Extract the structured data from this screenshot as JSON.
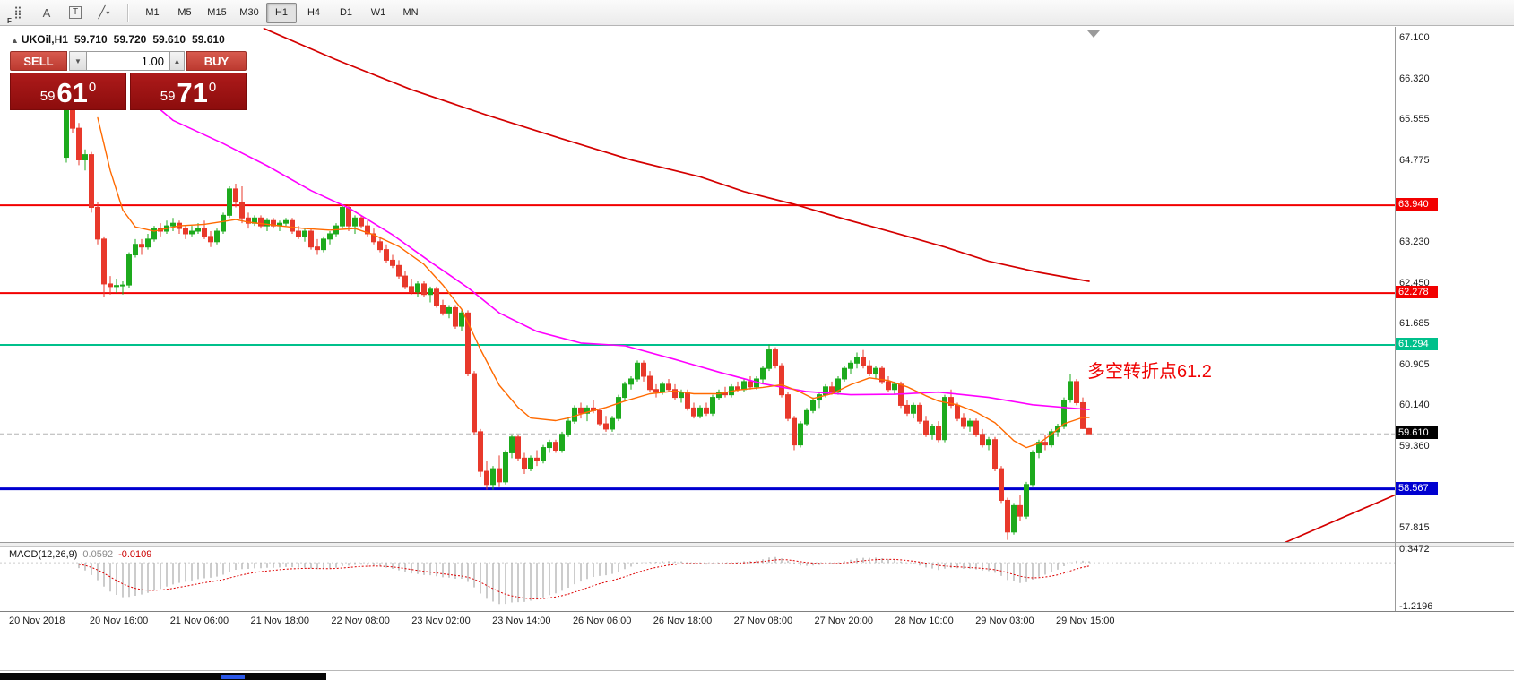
{
  "toolbar": {
    "icons": [
      {
        "name": "crosshair-grid-icon",
        "glyph": "⣿",
        "badge": "F"
      },
      {
        "name": "text-label-icon",
        "glyph": "A"
      },
      {
        "name": "text-frame-icon",
        "glyph": "T",
        "framed": true
      },
      {
        "name": "draw-shapes-icon",
        "glyph": "╱",
        "caret": "▾"
      }
    ],
    "timeframes": [
      "M1",
      "M5",
      "M15",
      "M30",
      "H1",
      "H4",
      "D1",
      "W1",
      "MN"
    ],
    "active_timeframe": "H1"
  },
  "quote": {
    "symbol_marker": "▲",
    "symbol": "UKOil,H1",
    "open": "59.710",
    "high": "59.720",
    "low": "59.610",
    "close": "59.610"
  },
  "trade_panel": {
    "sell_label": "SELL",
    "buy_label": "BUY",
    "volume": "1.00",
    "vol_down_glyph": "▼",
    "vol_up_glyph": "▲",
    "bid_small": "59",
    "bid_big": "61",
    "bid_sup": "0",
    "ask_small": "59",
    "ask_big": "71",
    "ask_sup": "0"
  },
  "annotation": {
    "text": "多空转折点61.2",
    "color": "#ef0000"
  },
  "macd_panel": {
    "label": "MACD(12,26,9)",
    "value_main": "0.0592",
    "value_signal": "-0.0109",
    "axis_max": "0.3472",
    "axis_min": "-1.2196"
  },
  "price_axis": {
    "ticks": [
      "67.100",
      "66.320",
      "65.555",
      "64.775",
      "63.230",
      "62.450",
      "61.685",
      "60.905",
      "60.140",
      "59.360",
      "57.815"
    ],
    "special": [
      {
        "text": "63.940",
        "price": 63.94,
        "bg": "#f20000",
        "fg": "#ffffff"
      },
      {
        "text": "62.278",
        "price": 62.278,
        "bg": "#f20000",
        "fg": "#ffffff"
      },
      {
        "text": "61.294",
        "price": 61.294,
        "bg": "#00c08b",
        "fg": "#ffffff"
      },
      {
        "text": "59.610",
        "price": 59.61,
        "bg": "#000000",
        "fg": "#ffffff"
      },
      {
        "text": "58.567",
        "price": 58.567,
        "bg": "#0000d0",
        "fg": "#ffffff"
      }
    ]
  },
  "time_axis": {
    "labels": [
      "20 Nov 2018",
      "20 Nov 16:00",
      "21 Nov 06:00",
      "21 Nov 18:00",
      "22 Nov 08:00",
      "23 Nov 02:00",
      "23 Nov 14:00",
      "26 Nov 06:00",
      "26 Nov 18:00",
      "27 Nov 08:00",
      "27 Nov 20:00",
      "28 Nov 10:00",
      "29 Nov 03:00",
      "29 Nov 15:00"
    ]
  },
  "chart_data": {
    "type": "candlestick",
    "symbol": "UKOil",
    "timeframe": "H1",
    "ylim": [
      57.5,
      67.3
    ],
    "colors": {
      "up": "#1daa1d",
      "down": "#e8392b",
      "ma_fast": "#ff6a00",
      "ma_mid": "#ff00ff",
      "ma_slow": "#d40000"
    },
    "candles": [
      [
        64.85,
        66.2,
        64.75,
        66.1
      ],
      [
        66.1,
        66.15,
        65.3,
        65.4
      ],
      [
        65.4,
        65.5,
        64.7,
        64.8
      ],
      [
        64.8,
        65.0,
        64.6,
        64.9
      ],
      [
        64.9,
        64.95,
        63.8,
        63.9
      ],
      [
        63.9,
        64.0,
        63.2,
        63.3
      ],
      [
        63.3,
        63.35,
        62.2,
        62.45
      ],
      [
        62.45,
        62.6,
        62.25,
        62.4
      ],
      [
        62.4,
        62.55,
        62.28,
        62.42
      ],
      [
        62.42,
        62.5,
        62.25,
        62.43
      ],
      [
        62.43,
        63.05,
        62.38,
        63.0
      ],
      [
        63.0,
        63.3,
        62.95,
        63.2
      ],
      [
        63.2,
        63.3,
        63.0,
        63.15
      ],
      [
        63.15,
        63.4,
        63.1,
        63.3
      ],
      [
        63.3,
        63.55,
        63.25,
        63.5
      ],
      [
        63.5,
        63.6,
        63.35,
        63.45
      ],
      [
        63.45,
        63.65,
        63.4,
        63.55
      ],
      [
        63.55,
        63.7,
        63.45,
        63.6
      ],
      [
        63.6,
        63.65,
        63.4,
        63.5
      ],
      [
        63.5,
        63.55,
        63.3,
        63.4
      ],
      [
        63.4,
        63.55,
        63.35,
        63.45
      ],
      [
        63.45,
        63.6,
        63.4,
        63.5
      ],
      [
        63.5,
        63.65,
        63.3,
        63.35
      ],
      [
        63.35,
        63.45,
        63.15,
        63.25
      ],
      [
        63.25,
        63.5,
        63.2,
        63.45
      ],
      [
        63.45,
        63.8,
        63.4,
        63.75
      ],
      [
        63.75,
        64.3,
        63.7,
        64.25
      ],
      [
        64.25,
        64.35,
        63.9,
        64.0
      ],
      [
        64.0,
        64.3,
        63.6,
        63.7
      ],
      [
        63.7,
        63.8,
        63.5,
        63.6
      ],
      [
        63.6,
        63.75,
        63.55,
        63.7
      ],
      [
        63.7,
        63.75,
        63.5,
        63.55
      ],
      [
        63.55,
        63.7,
        63.45,
        63.65
      ],
      [
        63.65,
        63.7,
        63.5,
        63.55
      ],
      [
        63.55,
        63.65,
        63.45,
        63.6
      ],
      [
        63.6,
        63.7,
        63.55,
        63.65
      ],
      [
        63.65,
        63.7,
        63.4,
        63.45
      ],
      [
        63.45,
        63.55,
        63.3,
        63.35
      ],
      [
        63.35,
        63.5,
        63.25,
        63.45
      ],
      [
        63.45,
        63.5,
        63.1,
        63.15
      ],
      [
        63.15,
        63.3,
        63.0,
        63.1
      ],
      [
        63.1,
        63.35,
        63.05,
        63.3
      ],
      [
        63.3,
        63.45,
        63.2,
        63.4
      ],
      [
        63.4,
        63.6,
        63.35,
        63.55
      ],
      [
        63.55,
        63.95,
        63.5,
        63.9
      ],
      [
        63.9,
        63.95,
        63.45,
        63.55
      ],
      [
        63.55,
        63.75,
        63.4,
        63.7
      ],
      [
        63.7,
        63.75,
        63.5,
        63.55
      ],
      [
        63.55,
        63.65,
        63.35,
        63.4
      ],
      [
        63.4,
        63.5,
        63.2,
        63.25
      ],
      [
        63.25,
        63.35,
        63.05,
        63.1
      ],
      [
        63.1,
        63.2,
        62.85,
        62.9
      ],
      [
        62.9,
        63.0,
        62.75,
        62.8
      ],
      [
        62.8,
        62.9,
        62.55,
        62.6
      ],
      [
        62.6,
        62.7,
        62.35,
        62.4
      ],
      [
        62.4,
        62.55,
        62.25,
        62.3
      ],
      [
        62.3,
        62.5,
        62.2,
        62.45
      ],
      [
        62.45,
        62.5,
        62.2,
        62.25
      ],
      [
        62.25,
        62.4,
        62.1,
        62.35
      ],
      [
        62.35,
        62.4,
        62.0,
        62.05
      ],
      [
        62.05,
        62.15,
        61.85,
        61.9
      ],
      [
        61.9,
        62.05,
        61.8,
        62.0
      ],
      [
        62.0,
        62.05,
        61.6,
        61.65
      ],
      [
        61.65,
        61.95,
        61.55,
        61.9
      ],
      [
        61.9,
        61.95,
        60.7,
        60.75
      ],
      [
        60.75,
        60.8,
        59.6,
        59.65
      ],
      [
        59.65,
        59.7,
        58.8,
        58.9
      ],
      [
        58.9,
        59.1,
        58.55,
        58.65
      ],
      [
        58.65,
        59.0,
        58.55,
        58.95
      ],
      [
        58.95,
        59.2,
        58.6,
        58.7
      ],
      [
        58.7,
        59.3,
        58.65,
        59.25
      ],
      [
        59.25,
        59.6,
        59.15,
        59.55
      ],
      [
        59.55,
        59.6,
        59.1,
        59.15
      ],
      [
        59.15,
        59.25,
        58.85,
        58.95
      ],
      [
        58.95,
        59.2,
        58.9,
        59.15
      ],
      [
        59.15,
        59.3,
        59.0,
        59.1
      ],
      [
        59.1,
        59.4,
        59.05,
        59.35
      ],
      [
        59.35,
        59.5,
        59.25,
        59.45
      ],
      [
        59.45,
        59.5,
        59.25,
        59.3
      ],
      [
        59.3,
        59.65,
        59.25,
        59.6
      ],
      [
        59.6,
        59.9,
        59.55,
        59.85
      ],
      [
        59.85,
        60.15,
        59.8,
        60.1
      ],
      [
        60.1,
        60.2,
        59.9,
        60.0
      ],
      [
        60.0,
        60.15,
        59.85,
        60.1
      ],
      [
        60.1,
        60.25,
        60.0,
        60.05
      ],
      [
        60.05,
        60.1,
        59.75,
        59.8
      ],
      [
        59.8,
        59.95,
        59.65,
        59.7
      ],
      [
        59.7,
        59.95,
        59.65,
        59.9
      ],
      [
        59.9,
        60.35,
        59.85,
        60.3
      ],
      [
        60.3,
        60.6,
        60.25,
        60.55
      ],
      [
        60.55,
        60.7,
        60.45,
        60.65
      ],
      [
        60.65,
        61.0,
        60.6,
        60.95
      ],
      [
        60.95,
        61.0,
        60.6,
        60.7
      ],
      [
        60.7,
        60.8,
        60.4,
        60.45
      ],
      [
        60.45,
        60.55,
        60.3,
        60.4
      ],
      [
        60.4,
        60.6,
        60.35,
        60.55
      ],
      [
        60.55,
        60.65,
        60.4,
        60.45
      ],
      [
        60.45,
        60.55,
        60.25,
        60.3
      ],
      [
        60.3,
        60.45,
        60.2,
        60.4
      ],
      [
        60.4,
        60.45,
        60.05,
        60.1
      ],
      [
        60.1,
        60.2,
        59.9,
        59.95
      ],
      [
        59.95,
        60.15,
        59.9,
        60.1
      ],
      [
        60.1,
        60.2,
        59.95,
        60.0
      ],
      [
        60.0,
        60.35,
        59.95,
        60.3
      ],
      [
        60.3,
        60.45,
        60.25,
        60.4
      ],
      [
        60.4,
        60.5,
        60.3,
        60.35
      ],
      [
        60.35,
        60.55,
        60.3,
        60.5
      ],
      [
        60.5,
        60.6,
        60.4,
        60.45
      ],
      [
        60.45,
        60.65,
        60.4,
        60.6
      ],
      [
        60.6,
        60.7,
        60.45,
        60.5
      ],
      [
        60.5,
        60.7,
        60.45,
        60.65
      ],
      [
        60.65,
        60.9,
        60.55,
        60.85
      ],
      [
        60.85,
        61.3,
        60.8,
        61.2
      ],
      [
        61.2,
        61.25,
        60.85,
        60.9
      ],
      [
        60.9,
        60.95,
        60.3,
        60.35
      ],
      [
        60.35,
        60.4,
        59.85,
        59.9
      ],
      [
        59.9,
        59.95,
        59.3,
        59.4
      ],
      [
        59.4,
        59.85,
        59.35,
        59.8
      ],
      [
        59.8,
        60.1,
        59.75,
        60.05
      ],
      [
        60.05,
        60.3,
        60.0,
        60.25
      ],
      [
        60.25,
        60.4,
        60.1,
        60.35
      ],
      [
        60.35,
        60.55,
        60.3,
        60.5
      ],
      [
        60.5,
        60.6,
        60.35,
        60.4
      ],
      [
        60.4,
        60.7,
        60.35,
        60.65
      ],
      [
        60.65,
        60.9,
        60.6,
        60.85
      ],
      [
        60.85,
        61.0,
        60.75,
        60.95
      ],
      [
        60.95,
        61.15,
        60.85,
        61.05
      ],
      [
        61.05,
        61.2,
        60.85,
        60.9
      ],
      [
        60.9,
        61.0,
        60.7,
        60.75
      ],
      [
        60.75,
        60.9,
        60.65,
        60.85
      ],
      [
        60.85,
        60.9,
        60.55,
        60.6
      ],
      [
        60.6,
        60.7,
        60.4,
        60.45
      ],
      [
        60.45,
        60.6,
        60.35,
        60.55
      ],
      [
        60.55,
        60.6,
        60.1,
        60.15
      ],
      [
        60.15,
        60.25,
        59.95,
        60.0
      ],
      [
        60.0,
        60.2,
        59.9,
        60.15
      ],
      [
        60.15,
        60.2,
        59.8,
        59.85
      ],
      [
        59.85,
        59.95,
        59.55,
        59.6
      ],
      [
        59.6,
        59.8,
        59.5,
        59.75
      ],
      [
        59.75,
        59.85,
        59.45,
        59.5
      ],
      [
        59.5,
        60.35,
        59.45,
        60.3
      ],
      [
        60.3,
        60.45,
        60.1,
        60.15
      ],
      [
        60.15,
        60.2,
        59.85,
        59.9
      ],
      [
        59.9,
        60.0,
        59.7,
        59.75
      ],
      [
        59.75,
        59.9,
        59.65,
        59.85
      ],
      [
        59.85,
        59.9,
        59.55,
        59.6
      ],
      [
        59.6,
        59.7,
        59.35,
        59.4
      ],
      [
        59.4,
        59.55,
        59.3,
        59.5
      ],
      [
        59.5,
        59.55,
        58.9,
        58.95
      ],
      [
        58.95,
        59.0,
        58.3,
        58.35
      ],
      [
        58.35,
        58.4,
        57.6,
        57.75
      ],
      [
        57.75,
        58.3,
        57.7,
        58.25
      ],
      [
        58.25,
        58.45,
        57.95,
        58.05
      ],
      [
        58.05,
        58.7,
        58.0,
        58.65
      ],
      [
        58.65,
        59.3,
        58.6,
        59.25
      ],
      [
        59.25,
        59.5,
        59.15,
        59.45
      ],
      [
        59.45,
        59.6,
        59.3,
        59.4
      ],
      [
        59.4,
        59.7,
        59.35,
        59.65
      ],
      [
        59.65,
        59.8,
        59.55,
        59.75
      ],
      [
        59.75,
        60.3,
        59.7,
        60.25
      ],
      [
        60.25,
        60.75,
        60.2,
        60.6
      ],
      [
        60.6,
        60.65,
        60.15,
        60.2
      ],
      [
        60.2,
        60.3,
        59.7,
        59.71
      ],
      [
        59.71,
        59.72,
        59.61,
        59.61
      ]
    ],
    "ma_slow": [
      [
        31.5,
        67.29
      ],
      [
        43,
        66.7
      ],
      [
        55,
        66.13
      ],
      [
        67,
        65.65
      ],
      [
        79,
        65.2
      ],
      [
        90,
        64.8
      ],
      [
        101,
        64.48
      ],
      [
        108,
        64.2
      ],
      [
        116,
        63.96
      ],
      [
        124,
        63.68
      ],
      [
        132,
        63.42
      ],
      [
        140,
        63.15
      ],
      [
        147,
        62.88
      ],
      [
        155,
        62.67
      ],
      [
        163,
        62.5
      ]
    ],
    "ma_mid": [
      [
        12,
        66.05
      ],
      [
        17,
        65.55
      ],
      [
        25,
        65.11
      ],
      [
        32,
        64.69
      ],
      [
        39,
        64.22
      ],
      [
        45,
        63.89
      ],
      [
        52,
        63.38
      ],
      [
        58,
        62.87
      ],
      [
        64,
        62.38
      ],
      [
        69,
        61.9
      ],
      [
        75,
        61.55
      ],
      [
        82,
        61.33
      ],
      [
        89,
        61.28
      ],
      [
        97,
        61.02
      ],
      [
        104,
        60.78
      ],
      [
        111,
        60.56
      ],
      [
        118,
        60.41
      ],
      [
        125,
        60.35
      ],
      [
        132,
        60.36
      ],
      [
        139,
        60.4
      ],
      [
        147,
        60.3
      ],
      [
        154,
        60.16
      ],
      [
        161,
        60.09
      ],
      [
        163,
        60.07
      ]
    ],
    "ma_fast": [
      [
        5,
        65.6
      ],
      [
        7,
        64.6
      ],
      [
        9,
        63.85
      ],
      [
        11,
        63.53
      ],
      [
        14,
        63.45
      ],
      [
        18,
        63.55
      ],
      [
        22,
        63.58
      ],
      [
        27,
        63.67
      ],
      [
        29,
        63.62
      ],
      [
        34,
        63.55
      ],
      [
        38,
        63.5
      ],
      [
        42,
        63.47
      ],
      [
        46,
        63.5
      ],
      [
        49,
        63.38
      ],
      [
        53,
        63.16
      ],
      [
        57,
        62.82
      ],
      [
        60,
        62.43
      ],
      [
        63,
        61.97
      ],
      [
        66,
        61.21
      ],
      [
        69,
        60.53
      ],
      [
        72,
        60.11
      ],
      [
        74,
        59.91
      ],
      [
        78,
        59.86
      ],
      [
        80,
        59.91
      ],
      [
        83,
        60.02
      ],
      [
        86,
        60.11
      ],
      [
        89,
        60.23
      ],
      [
        93,
        60.37
      ],
      [
        97,
        60.42
      ],
      [
        100,
        60.37
      ],
      [
        104,
        60.37
      ],
      [
        107,
        60.44
      ],
      [
        111,
        60.49
      ],
      [
        114,
        60.54
      ],
      [
        117,
        60.4
      ],
      [
        119,
        60.28
      ],
      [
        122,
        60.37
      ],
      [
        125,
        60.54
      ],
      [
        128,
        60.67
      ],
      [
        131,
        60.62
      ],
      [
        134,
        60.5
      ],
      [
        137,
        60.33
      ],
      [
        139,
        60.23
      ],
      [
        142,
        60.16
      ],
      [
        145,
        60.02
      ],
      [
        148,
        59.82
      ],
      [
        151,
        59.48
      ],
      [
        153,
        59.35
      ],
      [
        155,
        59.43
      ],
      [
        157,
        59.6
      ],
      [
        159,
        59.8
      ],
      [
        162,
        59.92
      ],
      [
        163,
        59.92
      ]
    ],
    "trend_line": [
      [
        194,
        57.54
      ],
      [
        211.7,
        58.45
      ]
    ],
    "hlines": [
      {
        "price": 63.94,
        "color": "#f20000",
        "width": 2
      },
      {
        "price": 62.278,
        "color": "#f20000",
        "width": 2
      },
      {
        "price": 61.294,
        "color": "#00c08b",
        "width": 2
      },
      {
        "price": 58.567,
        "color": "#0000d0",
        "width": 3
      },
      {
        "price": 59.61,
        "color": "#b4b4b4",
        "width": 1,
        "dash": true
      }
    ],
    "macd": {
      "fast": 12,
      "slow": 26,
      "signal": 9,
      "scale_max": 0.3472,
      "scale_min": -1.2196
    }
  }
}
